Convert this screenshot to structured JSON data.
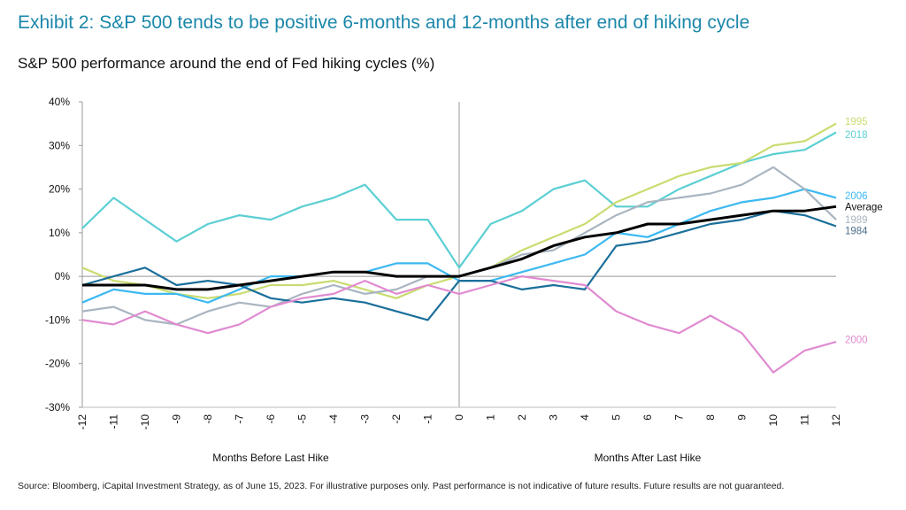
{
  "title": "Exhibit 2: S&P 500 tends to be positive 6-months and 12-months after end of hiking cycle",
  "subtitle": "S&P 500 performance around the end of Fed hiking cycles (%)",
  "source": "Source: Bloomberg, iCapital Investment Strategy, as of June 15, 2023. For illustrative purposes only. Past performance is not indicative of future results. Future results are not guaranteed.",
  "chart_data": {
    "type": "line",
    "title": "S&P 500 performance around the end of Fed hiking cycles (%)",
    "xlabel_left": "Months Before Last Hike",
    "xlabel_right": "Months After Last Hike",
    "xlim": [
      -12,
      12
    ],
    "ylim": [
      -30,
      40
    ],
    "x_ticks": [
      "-12",
      "-11",
      "-10",
      "-9",
      "-8",
      "-7",
      "-6",
      "-5",
      "-4",
      "-3",
      "-2",
      "-1",
      "0",
      "1",
      "2",
      "3",
      "4",
      "5",
      "6",
      "7",
      "8",
      "9",
      "10",
      "11",
      "12"
    ],
    "y_ticks": [
      "40%",
      "30%",
      "20%",
      "10%",
      "0%",
      "-10%",
      "-20%",
      "-30%"
    ],
    "legend_placement": "right end labels",
    "x": [
      -12,
      -11,
      -10,
      -9,
      -8,
      -7,
      -6,
      -5,
      -4,
      -3,
      -2,
      -1,
      0,
      1,
      2,
      3,
      4,
      5,
      6,
      7,
      8,
      9,
      10,
      11,
      12
    ],
    "series": [
      {
        "name": "2018",
        "color": "#5ccfd3",
        "width": 2.2,
        "values": [
          11,
          18,
          13,
          8,
          12,
          14,
          13,
          16,
          18,
          21,
          13,
          13,
          2,
          12,
          15,
          20,
          22,
          16,
          16,
          20,
          23,
          26,
          28,
          29,
          33
        ]
      },
      {
        "name": "1995",
        "color": "#c9dc70",
        "width": 2.2,
        "values": [
          2,
          -1,
          -2,
          -4,
          -5,
          -4,
          -2,
          -2,
          -1,
          -3,
          -5,
          -2,
          0,
          2,
          6,
          9,
          12,
          17,
          20,
          23,
          25,
          26,
          30,
          31,
          35
        ]
      },
      {
        "name": "2006",
        "color": "#3cb9f1",
        "width": 2.2,
        "values": [
          -6,
          -3,
          -4,
          -4,
          -6,
          -3,
          0,
          0,
          1,
          1,
          3,
          3,
          -1,
          -1,
          1,
          3,
          5,
          10,
          9,
          12,
          15,
          17,
          18,
          20,
          18
        ]
      },
      {
        "name": "1989",
        "color": "#a9b5c0",
        "width": 2.2,
        "values": [
          -8,
          -7,
          -10,
          -11,
          -8,
          -6,
          -7,
          -4,
          -2,
          -4,
          -3,
          0,
          0,
          2,
          5,
          6,
          10,
          14,
          17,
          18,
          19,
          21,
          25,
          20,
          13
        ]
      },
      {
        "name": "1984",
        "color": "#1b6f9b",
        "width": 2.2,
        "values": [
          -2,
          0,
          2,
          -2,
          -1,
          -2,
          -5,
          -6,
          -5,
          -6,
          -8,
          -10,
          -1,
          -1,
          -3,
          -2,
          -3,
          7,
          8,
          10,
          12,
          13,
          15,
          14,
          11.5
        ]
      },
      {
        "name": "2000",
        "color": "#e08bd1",
        "width": 2.2,
        "values": [
          -10,
          -11,
          -8,
          -11,
          -13,
          -11,
          -7,
          -5,
          -4,
          -1,
          -4,
          -2,
          -4,
          -2,
          0,
          -1,
          -2,
          -8,
          -11,
          -13,
          -9,
          -13,
          -22,
          -17,
          -15
        ]
      },
      {
        "name": "Average",
        "color": "#000000",
        "width": 3,
        "values": [
          -2,
          -2,
          -2,
          -3,
          -3,
          -2,
          -1,
          0,
          1,
          1,
          0,
          0,
          0,
          2,
          4,
          7,
          9,
          10,
          12,
          12,
          13,
          14,
          15,
          15,
          16
        ]
      }
    ],
    "end_labels": [
      {
        "name": "1995",
        "color": "#c9dc70",
        "value": 35.5
      },
      {
        "name": "2018",
        "color": "#5ccfd3",
        "value": 32.5
      },
      {
        "name": "2006",
        "color": "#3cb9f1",
        "value": 18.5
      },
      {
        "name": "Average",
        "color": "#111111",
        "value": 16
      },
      {
        "name": "1989",
        "color": "#a9b5c0",
        "value": 13
      },
      {
        "name": "1984",
        "color": "#4a6e8c",
        "value": 10.5
      },
      {
        "name": "2000",
        "color": "#e08bd1",
        "value": -14.5
      }
    ]
  }
}
